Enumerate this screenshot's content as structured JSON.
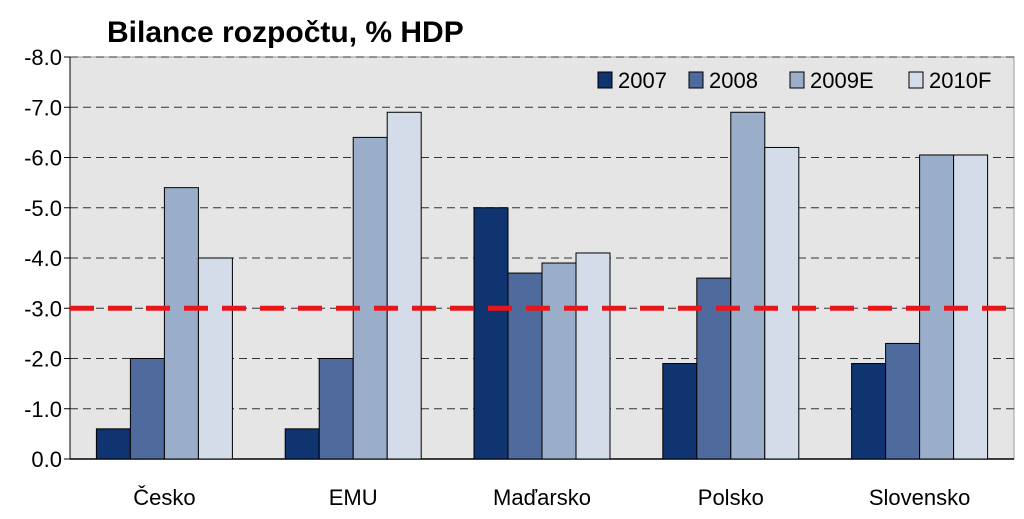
{
  "chart_data": {
    "type": "bar",
    "title": "Bilance rozpočtu, % HDP",
    "xlabel": "",
    "ylabel": "",
    "categories": [
      "Česko",
      "EMU",
      "Maďarsko",
      "Polsko",
      "Slovensko"
    ],
    "series": [
      {
        "name": "2007",
        "color": "#0f3470",
        "values": [
          -0.6,
          -0.6,
          -5.0,
          -1.9,
          -1.9
        ]
      },
      {
        "name": "2008",
        "color": "#4f6a9c",
        "values": [
          -2.0,
          -2.0,
          -3.7,
          -3.6,
          -2.3
        ]
      },
      {
        "name": "2009E",
        "color": "#9aaec9",
        "values": [
          -5.4,
          -6.4,
          -3.9,
          -6.9,
          -6.05
        ]
      },
      {
        "name": "2010F",
        "color": "#d3dce8",
        "values": [
          -4.0,
          -6.9,
          -4.1,
          -6.2,
          -6.05
        ]
      }
    ],
    "ylim": [
      0,
      -8.0
    ],
    "yticks": [
      "0.0",
      "-1.0",
      "-2.0",
      "-3.0",
      "-4.0",
      "-5.0",
      "-6.0",
      "-7.0",
      "-8.0"
    ],
    "reference_line": {
      "value": -3.0,
      "color": "#e8161b",
      "style": "dashed"
    },
    "grid": true,
    "plot_background": "#e5e5e5",
    "legend_position": "top-right"
  }
}
